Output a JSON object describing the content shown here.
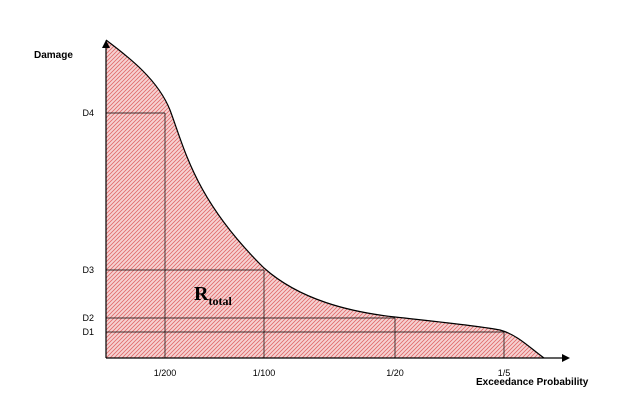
{
  "chart_data": {
    "type": "area",
    "xlabel": "Exceedance Probability",
    "ylabel": "Damage",
    "x_ticks": [
      "1/200",
      "1/100",
      "1/20",
      "1/5"
    ],
    "y_ticks": [
      "D1",
      "D2",
      "D3",
      "D4"
    ],
    "curve_points": [
      {
        "x_tick": "1/200",
        "y_tick": "D4"
      },
      {
        "x_tick": "1/100",
        "y_tick": "D3"
      },
      {
        "x_tick": "1/20",
        "y_tick": "D2"
      },
      {
        "x_tick": "1/5",
        "y_tick": "D1"
      }
    ],
    "annotation": {
      "main": "R",
      "subscript": "total"
    },
    "fill_color": "#d43a3a",
    "hatch_color": "#e06a6a",
    "line_color": "#000000"
  }
}
